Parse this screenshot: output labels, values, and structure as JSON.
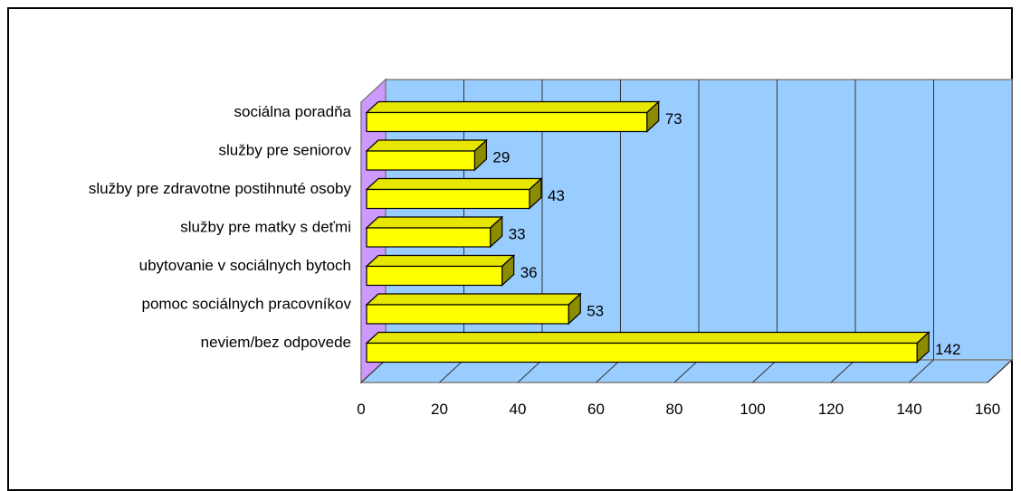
{
  "chart_data": {
    "type": "bar",
    "orientation": "horizontal",
    "style": "3d",
    "title": "",
    "xlabel": "",
    "ylabel": "",
    "categories": [
      "sociálna poradňa",
      "služby pre seniorov",
      "služby pre zdravotne postihnuté osoby",
      "služby pre matky s deťmi",
      "ubytovanie v sociálnych bytoch",
      "pomoc sociálnych pracovníkov",
      "neviem/bez odpovede"
    ],
    "values": [
      73,
      29,
      43,
      33,
      36,
      53,
      142
    ],
    "data_labels": [
      "73",
      "29",
      "43",
      "33",
      "36",
      "53",
      "142"
    ],
    "xlim": [
      0,
      160
    ],
    "x_ticks": [
      0,
      20,
      40,
      60,
      80,
      100,
      120,
      140,
      160
    ],
    "x_tick_labels": [
      "0",
      "20",
      "40",
      "60",
      "80",
      "100",
      "120",
      "140",
      "160"
    ],
    "grid": true,
    "legend": "none",
    "colors": {
      "bar_front": "#ffff00",
      "bar_top": "#e6e600",
      "bar_side": "#8c8c00",
      "back_wall": "#99ccff",
      "side_wall": "#cc99ff",
      "floor": "#99ccff",
      "grid": "#333333"
    }
  }
}
